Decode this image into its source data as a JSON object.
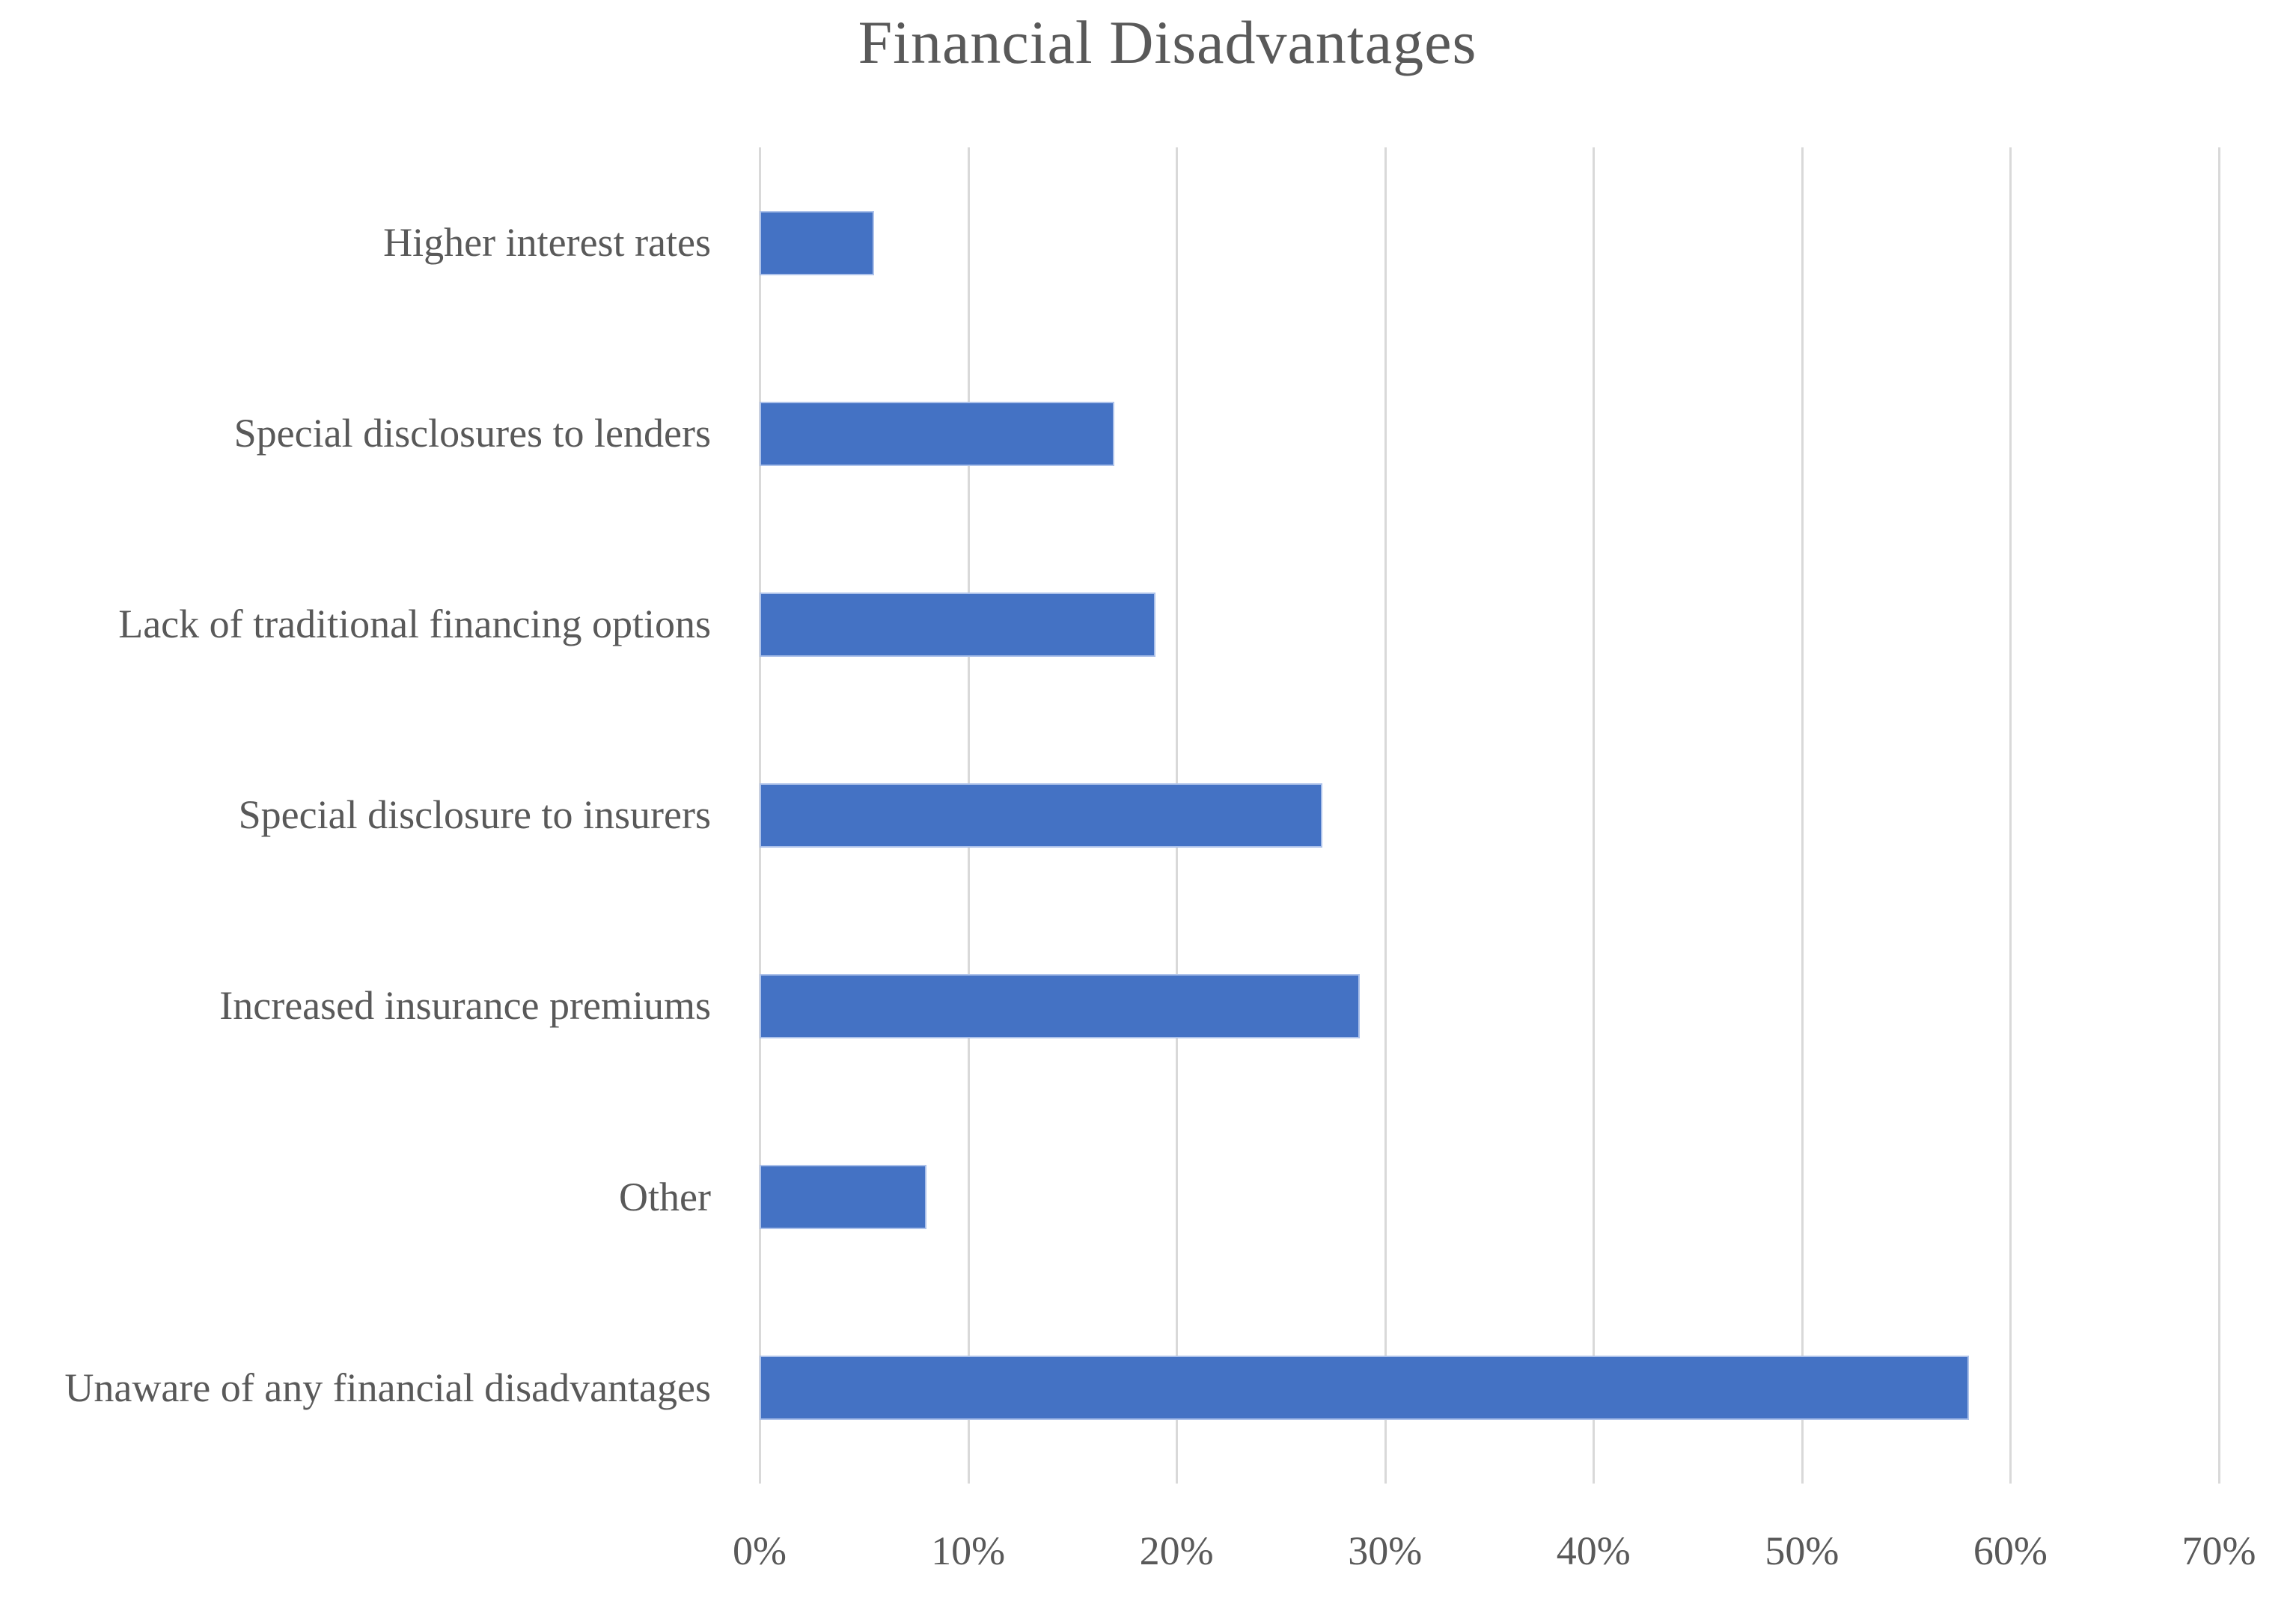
{
  "chart_data": {
    "type": "bar",
    "orientation": "horizontal",
    "title": "Financial Disadvantages",
    "categories": [
      "Higher interest rates",
      "Special disclosures to lenders",
      "Lack of traditional financing options",
      "Special disclosure to insurers",
      "Increased insurance premiums",
      "Other",
      "Unaware of any financial disadvantages"
    ],
    "values": [
      5.5,
      17,
      19,
      27,
      28.8,
      8,
      58
    ],
    "value_unit": "%",
    "xlabel": "",
    "ylabel": "",
    "axis": {
      "min": 0,
      "max": 70,
      "step": 10,
      "tick_labels": [
        "0%",
        "10%",
        "20%",
        "30%",
        "40%",
        "50%",
        "60%",
        "70%"
      ]
    },
    "grid": true,
    "legend": false,
    "colors": {
      "bar": "#4472C4",
      "bar_border": "#ADC2EA",
      "gridline": "#D9D9D9",
      "text": "#595959"
    }
  }
}
